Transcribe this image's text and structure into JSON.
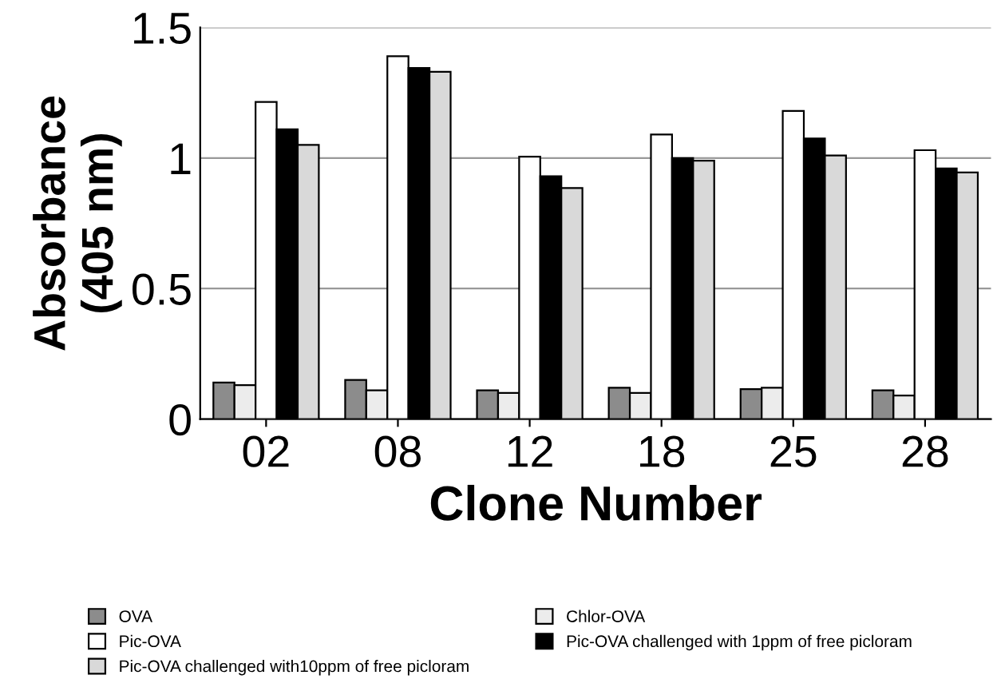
{
  "chart_data": {
    "type": "bar",
    "xlabel": "Clone Number",
    "ylabel": "Absorbance\n(405 nm)",
    "categories": [
      "02",
      "08",
      "12",
      "18",
      "25",
      "28"
    ],
    "series": [
      {
        "name": "OVA",
        "color": "#8c8c8c",
        "values": [
          0.14,
          0.15,
          0.11,
          0.12,
          0.115,
          0.11
        ]
      },
      {
        "name": "Chlor-OVA",
        "color": "#ececec",
        "values": [
          0.13,
          0.11,
          0.1,
          0.1,
          0.12,
          0.09
        ]
      },
      {
        "name": "Pic-OVA",
        "color": "#ffffff",
        "values": [
          1.215,
          1.39,
          1.005,
          1.09,
          1.18,
          1.03
        ]
      },
      {
        "name": "Pic-OVA challenged with 1ppm of free picloram",
        "color": "#000000",
        "values": [
          1.11,
          1.345,
          0.93,
          1.0,
          1.075,
          0.96
        ]
      },
      {
        "name": "Pic-OVA challenged with10ppm of free picloram",
        "color": "#d9d9d9",
        "values": [
          1.05,
          1.33,
          0.885,
          0.99,
          1.01,
          0.945
        ]
      }
    ],
    "ylim": [
      0,
      1.5
    ],
    "yticks": [
      0,
      0.5,
      1,
      1.5
    ],
    "grid": "y",
    "legend": "bottom"
  }
}
